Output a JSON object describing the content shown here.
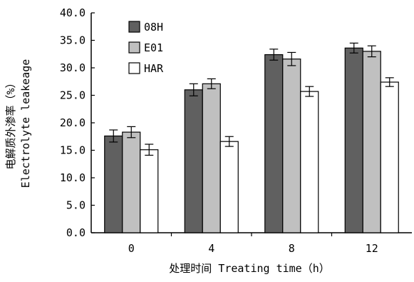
{
  "chart_data": {
    "type": "bar",
    "title": "",
    "xlabel": "处理时间 Treating time（h）",
    "ylabel_cn": "电解质外渗率（%）",
    "ylabel_en": "Electrolyte leakeage",
    "categories": [
      "0",
      "4",
      "8",
      "12"
    ],
    "ylim": [
      0,
      40
    ],
    "yticks": [
      "0.0",
      "5.0",
      "10.0",
      "15.0",
      "20.0",
      "25.0",
      "30.0",
      "35.0",
      "40.0"
    ],
    "grid": false,
    "legend_position": "top-left",
    "series": [
      {
        "name": "08H",
        "color": "#606060",
        "values": [
          17.6,
          26.0,
          32.4,
          33.6
        ],
        "errors": [
          1.1,
          1.1,
          1.0,
          0.9
        ]
      },
      {
        "name": "E01",
        "color": "#c0c0c0",
        "values": [
          18.3,
          27.1,
          31.6,
          33.0
        ],
        "errors": [
          1.0,
          0.9,
          1.2,
          1.0
        ]
      },
      {
        "name": "HAR",
        "color": "#ffffff",
        "values": [
          15.1,
          16.6,
          25.7,
          27.4
        ],
        "errors": [
          1.0,
          0.9,
          0.9,
          0.8
        ]
      }
    ]
  }
}
